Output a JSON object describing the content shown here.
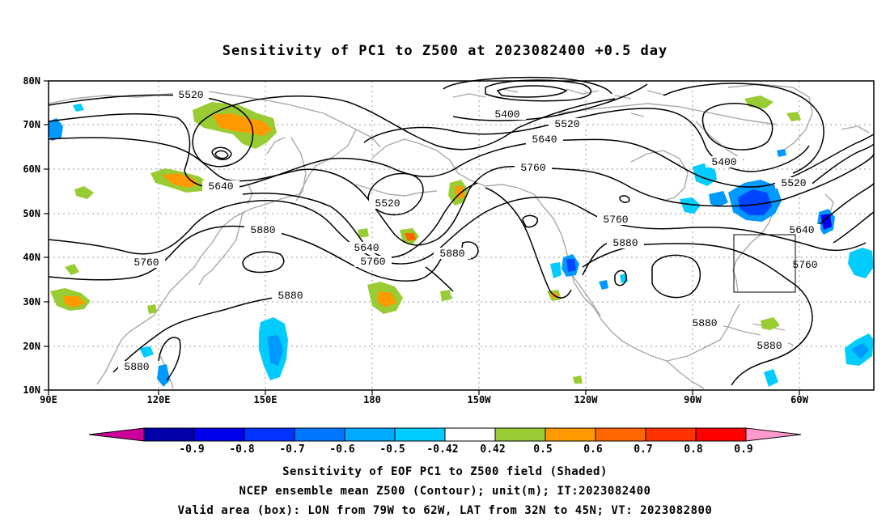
{
  "title": "Sensitivity of PC1 to Z500 at 2023082400 +0.5 day",
  "map": {
    "lon_labels": [
      "90E",
      "120E",
      "150E",
      "180",
      "150W",
      "120W",
      "90W",
      "60W"
    ],
    "lat_labels": [
      "80N",
      "70N",
      "60N",
      "50N",
      "40N",
      "30N",
      "20N",
      "10N"
    ],
    "contour_labels": [
      "5520",
      "5400",
      "5520",
      "5640",
      "5760",
      "5400",
      "5520",
      "5640",
      "5520",
      "5760",
      "5640",
      "5760",
      "5880",
      "5880",
      "5760",
      "5880",
      "5640",
      "5760",
      "5880",
      "5760",
      "5880",
      "5880",
      "5880"
    ],
    "valid_box": {
      "lon_from": "79W",
      "lon_to": "62W",
      "lat_from": "32N",
      "lat_to": "45N"
    },
    "colors": {
      "contour": "#000000",
      "coastline": "#a9a9a9",
      "grid": "#999999",
      "green": "#99cc33",
      "orange": "#ff9900",
      "deep_orange": "#ff6600",
      "light_blue": "#00ccff",
      "mid_blue": "#0099ff",
      "blue": "#0044ff"
    }
  },
  "colorbar": {
    "labels": [
      "-0.9",
      "-0.8",
      "-0.7",
      "-0.6",
      "-0.5",
      "-0.42",
      "0.42",
      "0.5",
      "0.6",
      "0.7",
      "0.8",
      "0.9"
    ],
    "colors": [
      "#cc0099",
      "#0000aa",
      "#0000ee",
      "#0033ff",
      "#0077ff",
      "#00aaff",
      "#00ccff",
      "#ffffff",
      "#99cc33",
      "#ff9900",
      "#ff6600",
      "#ff3300",
      "#ff0000",
      "#ff99cc"
    ]
  },
  "caption": {
    "line1": "Sensitivity of EOF PC1 to Z500 field (Shaded)",
    "line2": "NCEP ensemble mean Z500 (Contour); unit(m); IT:2023082400",
    "line3": "Valid area (box): LON from 79W to 62W, LAT from 32N to 45N; VT: 2023082800"
  }
}
